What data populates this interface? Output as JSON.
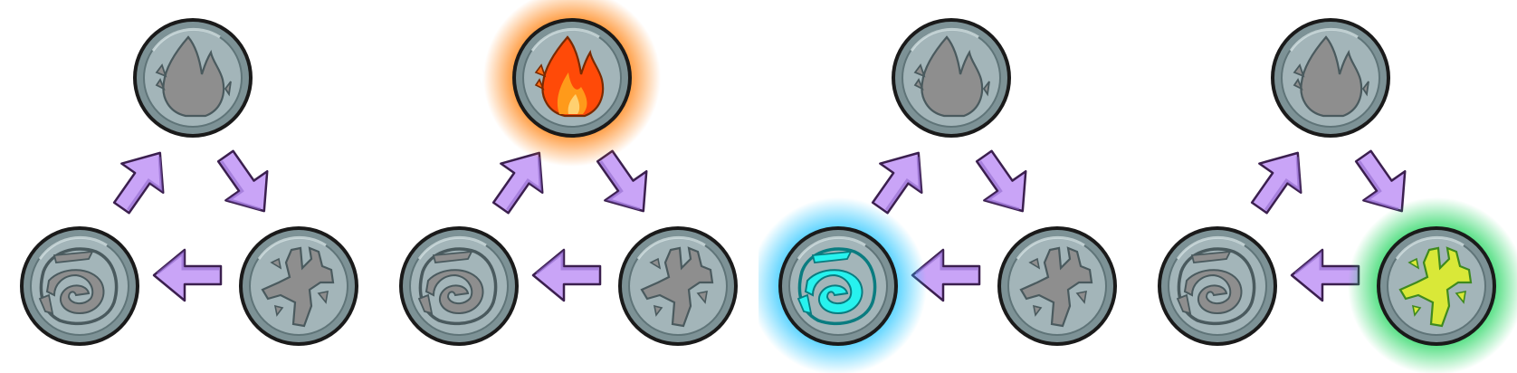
{
  "cycle": {
    "elements": [
      "fire",
      "water",
      "earth"
    ],
    "colors": {
      "coin_face": "#a3b5b9",
      "coin_ring": "#7d9296",
      "coin_outline": "#1a1a1a",
      "icon_inactive": "#8e8e8e",
      "arrow_fill": "#c9a4f7",
      "arrow_outline": "#3b1f4f",
      "fire_glow": "#ff7a00",
      "fire_icon": "#ff5a0a",
      "water_glow": "#22c4ff",
      "water_icon": "#27f2ee",
      "earth_glow": "#19d458",
      "earth_icon": "#d9e838"
    }
  },
  "panels": [
    {
      "active": "none",
      "nodes": {
        "fire": "fire-icon",
        "water": "water-icon",
        "earth": "earth-icon"
      }
    },
    {
      "active": "fire",
      "nodes": {
        "fire": "fire-icon",
        "water": "water-icon",
        "earth": "earth-icon"
      }
    },
    {
      "active": "water",
      "nodes": {
        "fire": "fire-icon",
        "water": "water-icon",
        "earth": "earth-icon"
      }
    },
    {
      "active": "earth",
      "nodes": {
        "fire": "fire-icon",
        "water": "water-icon",
        "earth": "earth-icon"
      }
    }
  ]
}
